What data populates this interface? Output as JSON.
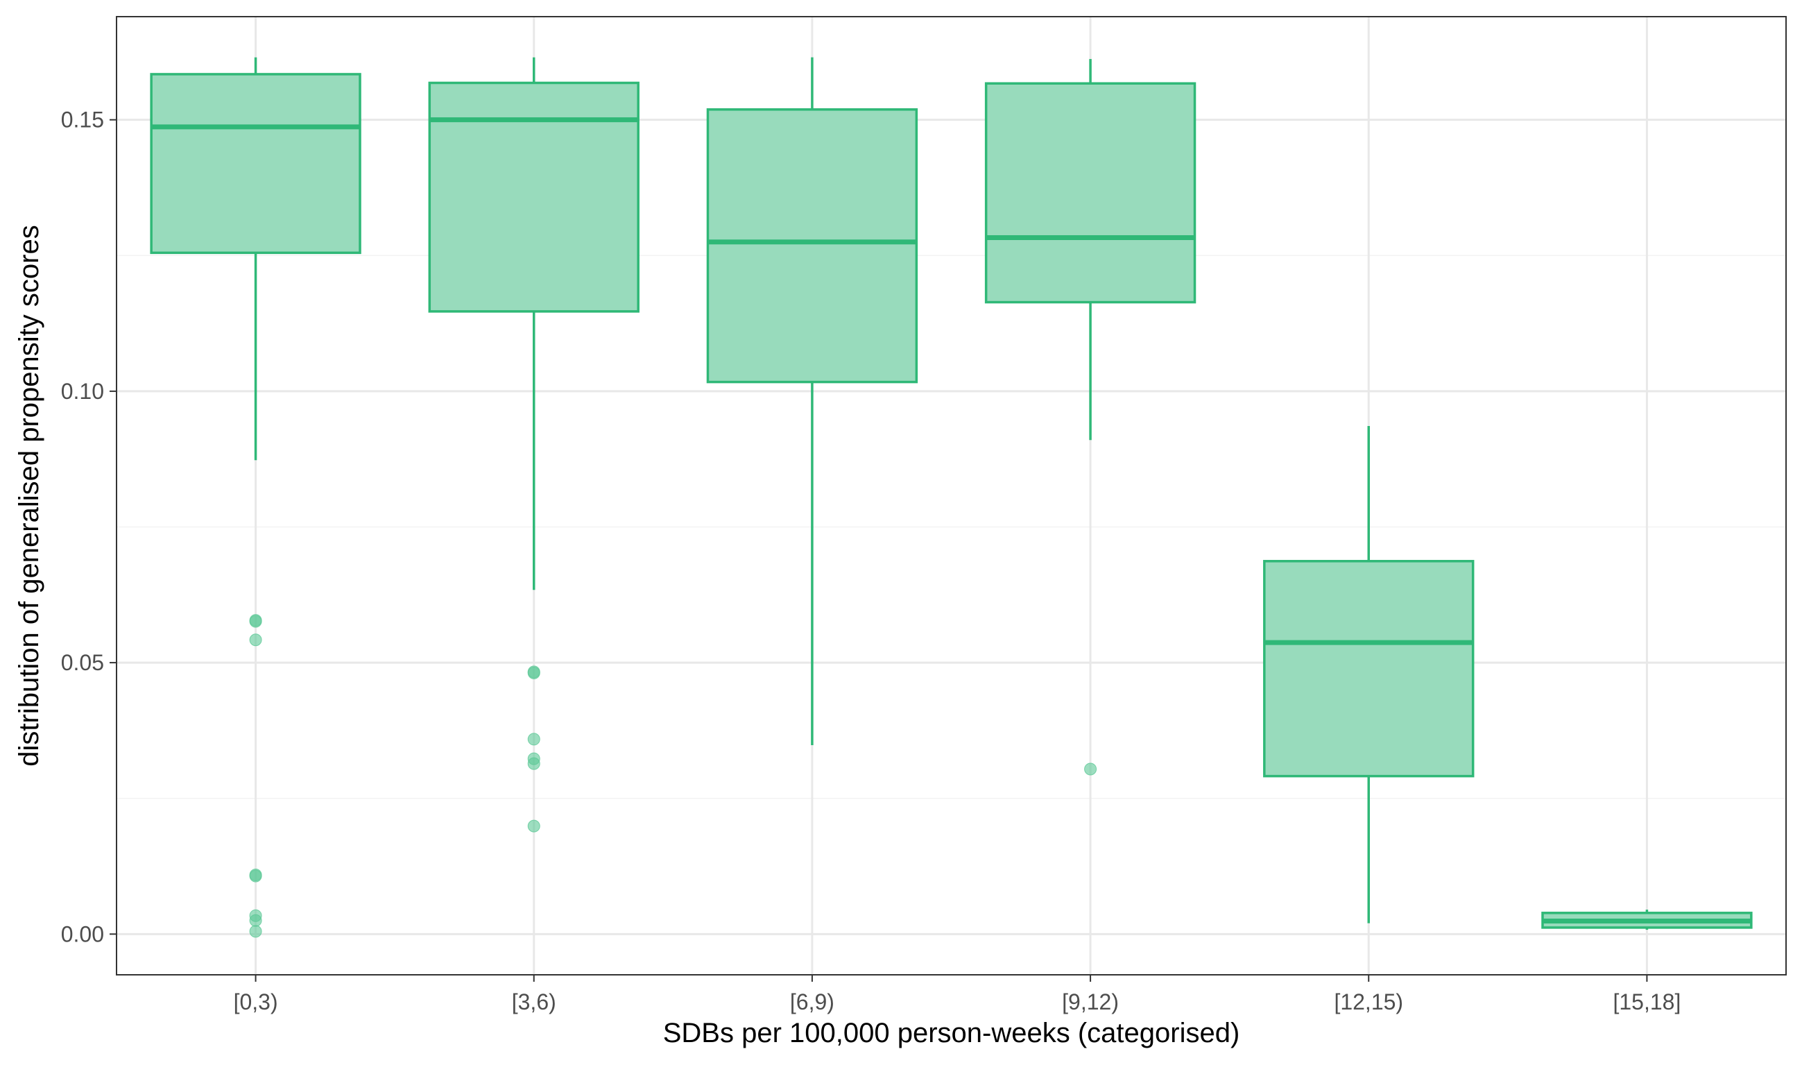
{
  "chart_data": {
    "type": "boxplot",
    "title": "",
    "xlabel": "SDBs per 100,000 person-weeks (categorised)",
    "ylabel": "distribution of generalised propensity scores",
    "ylim": [
      -0.0075,
      0.169
    ],
    "yticks": [
      0.0,
      0.05,
      0.1,
      0.15
    ],
    "ytick_labels": [
      "0.00",
      "0.05",
      "0.10",
      "0.15"
    ],
    "categories": [
      "[0,3)",
      "[3,6)",
      "[6,9)",
      "[9,12)",
      "[12,15)",
      "[15,18]"
    ],
    "boxes": [
      {
        "category": "[0,3)",
        "whisker_low": 0.0873,
        "q1": 0.1255,
        "median": 0.1487,
        "q3": 0.1584,
        "whisker_high": 0.1615,
        "outliers": [
          0.0576,
          0.0578,
          0.0542,
          0.0109,
          0.0107,
          0.0034,
          0.0025,
          0.0005
        ]
      },
      {
        "category": "[3,6)",
        "whisker_low": 0.0634,
        "q1": 0.1147,
        "median": 0.15,
        "q3": 0.1568,
        "whisker_high": 0.1615,
        "outliers": [
          0.0483,
          0.0481,
          0.0359,
          0.0323,
          0.0314,
          0.0199
        ]
      },
      {
        "category": "[6,9)",
        "whisker_low": 0.0348,
        "q1": 0.1017,
        "median": 0.1275,
        "q3": 0.1519,
        "whisker_high": 0.1615,
        "outliers": []
      },
      {
        "category": "[9,12)",
        "whisker_low": 0.091,
        "q1": 0.1164,
        "median": 0.1283,
        "q3": 0.1567,
        "whisker_high": 0.1612,
        "outliers": [
          0.0304
        ]
      },
      {
        "category": "[12,15)",
        "whisker_low": 0.002,
        "q1": 0.0291,
        "median": 0.0537,
        "q3": 0.0687,
        "whisker_high": 0.0936,
        "outliers": []
      },
      {
        "category": "[15,18]",
        "whisker_low": 0.0008,
        "q1": 0.0012,
        "median": 0.0024,
        "q3": 0.0039,
        "whisker_high": 0.0045,
        "outliers": []
      }
    ],
    "grid": true,
    "legend": "none",
    "colors": {
      "box_fill": "#98dbbc",
      "box_stroke": "#2fb877",
      "outlier_fill": "#5cc896",
      "grid_major": "#e8e8e8",
      "grid_minor": "#f3f3f3",
      "panel_border": "#333333",
      "tick_label": "#4d4d4d",
      "axis_title": "#000000"
    }
  }
}
